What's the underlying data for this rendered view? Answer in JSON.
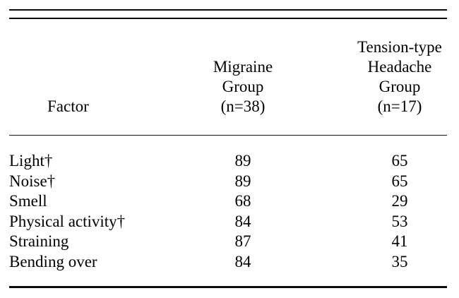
{
  "header": {
    "factor_label": "Factor",
    "migraine_label": "Migraine\nGroup\n(n=38)",
    "tension_label": "Tension-type\nHeadache\nGroup\n(n=17)"
  },
  "rows": [
    {
      "factor": "Light†",
      "migraine": "89",
      "tension": "65"
    },
    {
      "factor": "Noise†",
      "migraine": "89",
      "tension": "65"
    },
    {
      "factor": "Smell",
      "migraine": "68",
      "tension": "29"
    },
    {
      "factor": "Physical activity†",
      "migraine": "84",
      "tension": "53"
    },
    {
      "factor": "Straining",
      "migraine": "87",
      "tension": "41"
    },
    {
      "factor": "Bending over",
      "migraine": "84",
      "tension": "35"
    }
  ]
}
